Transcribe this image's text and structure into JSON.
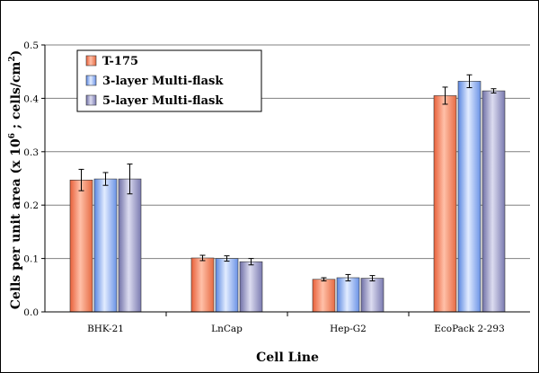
{
  "chart_data": {
    "type": "bar",
    "title": "",
    "xlabel": "Cell Line",
    "ylabel": "Cells per unit area (x 10⁶ ; cells/cm²)",
    "ylabel_parts": {
      "prefix": "Cells per unit area (x 10",
      "exp1": "6",
      "middle": " ; cells/cm",
      "exp2": "2",
      "suffix": ")"
    },
    "categories": [
      "BHK-21",
      "LnCap",
      "Hep-G2",
      "EcoPack 2-293"
    ],
    "ylim": [
      0,
      0.5
    ],
    "yticks": [
      "0.0",
      "0.1",
      "0.2",
      "0.3",
      "0.4",
      "0.5"
    ],
    "grid": true,
    "legend_position": "top-left",
    "series": [
      {
        "name": "T-175",
        "values": [
          0.247,
          0.101,
          0.061,
          0.405
        ],
        "errors": [
          0.02,
          0.005,
          0.003,
          0.016
        ],
        "color": "#f07a50"
      },
      {
        "name": "3-layer Multi-flask",
        "values": [
          0.249,
          0.1,
          0.064,
          0.432
        ],
        "errors": [
          0.012,
          0.005,
          0.006,
          0.012
        ],
        "color": "#7aa6f0"
      },
      {
        "name": "5-layer Multi-flask",
        "values": [
          0.249,
          0.094,
          0.063,
          0.414
        ],
        "errors": [
          0.028,
          0.006,
          0.005,
          0.004
        ],
        "color": "#8f8fbf"
      }
    ]
  }
}
